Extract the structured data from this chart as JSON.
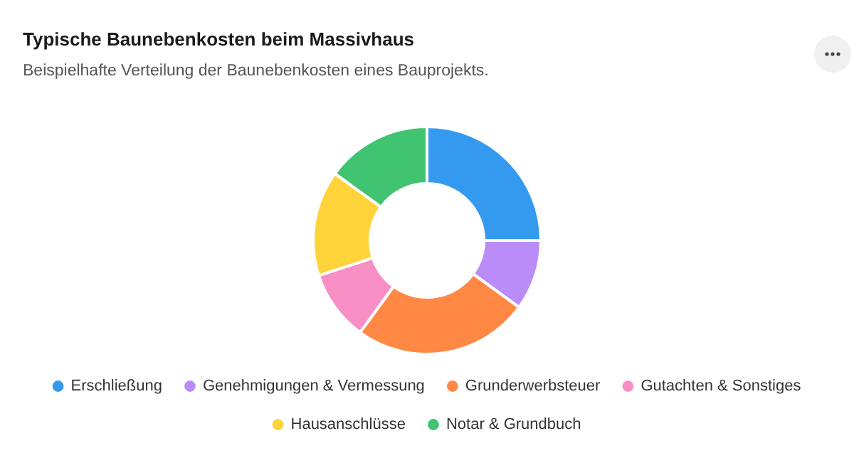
{
  "chart_data": {
    "type": "donut",
    "title": "Typische Baunebenkosten beim Massivhaus",
    "subtitle": "Beispielhafte Verteilung der Baunebenkosten eines Bauprojekts.",
    "categories": [
      "Erschließung",
      "Genehmigungen & Vermessung",
      "Grunderwerbsteuer",
      "Gutachten & Sonstiges",
      "Hausanschlüsse",
      "Notar & Grundbuch"
    ],
    "values": [
      25,
      10,
      25,
      10,
      15,
      15
    ],
    "colors": [
      "#339af0",
      "#b98cf7",
      "#ff8845",
      "#f78fc5",
      "#ffd43b",
      "#40c472"
    ],
    "legend": "bottom"
  }
}
